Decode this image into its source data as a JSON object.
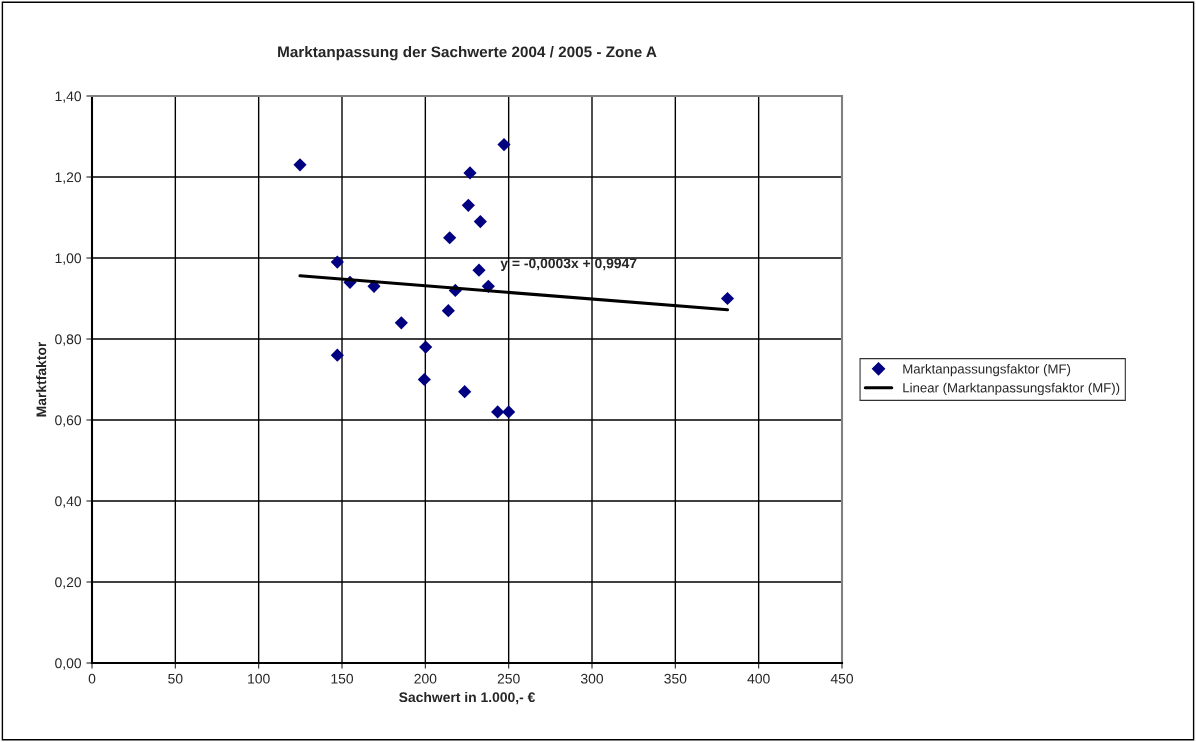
{
  "chart_data": {
    "type": "scatter",
    "title": "Marktanpassung der Sachwerte 2004 / 2005 - Zone A",
    "xlabel": "Sachwert in 1.000,- €",
    "ylabel": "Marktfaktor",
    "xlim": [
      0,
      450
    ],
    "xticks": [
      0,
      50,
      100,
      150,
      200,
      250,
      300,
      350,
      400,
      450
    ],
    "ylim": [
      0,
      1.4
    ],
    "yticks": [
      {
        "value": 0,
        "label": "0,00"
      },
      {
        "value": 0.2,
        "label": "0,20"
      },
      {
        "value": 0.4,
        "label": "0,40"
      },
      {
        "value": 0.6,
        "label": "0,60"
      },
      {
        "value": 0.8,
        "label": "0,80"
      },
      {
        "value": 1.0,
        "label": "1,00"
      },
      {
        "value": 1.2,
        "label": "1,20"
      },
      {
        "value": 1.4,
        "label": "1,40"
      }
    ],
    "grid": true,
    "legend": "right",
    "series": [
      {
        "name": "Marktanpassungsfaktor (MF)",
        "color": "#000080",
        "marker": "diamond",
        "x": [
          124.8,
          147.2,
          147.2,
          154.8,
          169.2,
          185.6,
          200.2,
          199.4,
          214.6,
          213.8,
          218,
          225.8,
          226.8,
          233,
          232.2,
          237.8,
          247.2,
          223.6,
          243.4,
          250,
          381.3
        ],
        "values": [
          1.23,
          0.99,
          0.76,
          0.94,
          0.93,
          0.84,
          0.78,
          0.7,
          1.05,
          0.87,
          0.92,
          1.13,
          1.21,
          1.09,
          0.97,
          0.93,
          1.28,
          0.67,
          0.62,
          0.62,
          0.9
        ]
      },
      {
        "name": "Linear (Marktanpassungsfaktor (MF))",
        "type": "line",
        "color": "#000000",
        "marker": "none",
        "line_style": "solid",
        "x": [
          124.8,
          381.3
        ],
        "values": [
          0.956,
          0.872
        ]
      }
    ],
    "annotations": [
      {
        "text": "y = -0,0003x + 0,9947",
        "x": 245,
        "y": 0.92
      }
    ]
  }
}
